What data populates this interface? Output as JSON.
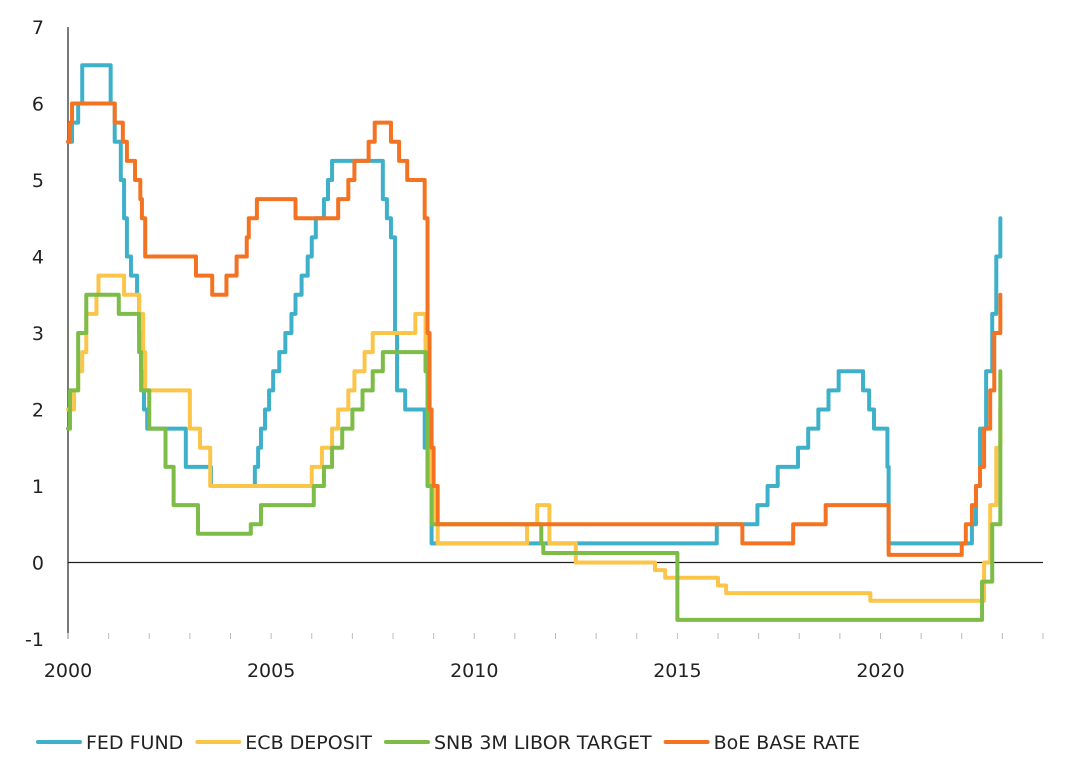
{
  "chart_data": {
    "type": "line",
    "title": "",
    "xlabel": "",
    "ylabel": "",
    "xlim": [
      2000,
      2024
    ],
    "ylim": [
      -1,
      7
    ],
    "x_ticks": [
      2000,
      2005,
      2010,
      2015,
      2020
    ],
    "y_ticks": [
      -1,
      0,
      1,
      2,
      3,
      4,
      5,
      6,
      7
    ],
    "grid": false,
    "legend_position": "bottom",
    "series": [
      {
        "name": "FED FUND",
        "color": "#3fb0c9",
        "points": [
          [
            2000.0,
            5.5
          ],
          [
            2000.1,
            5.75
          ],
          [
            2000.25,
            6.0
          ],
          [
            2000.35,
            6.5
          ],
          [
            2001.0,
            6.5
          ],
          [
            2001.05,
            6.0
          ],
          [
            2001.15,
            5.5
          ],
          [
            2001.3,
            5.0
          ],
          [
            2001.38,
            4.5
          ],
          [
            2001.45,
            4.0
          ],
          [
            2001.55,
            3.75
          ],
          [
            2001.7,
            3.5
          ],
          [
            2001.75,
            3.0
          ],
          [
            2001.8,
            2.5
          ],
          [
            2001.87,
            2.0
          ],
          [
            2001.95,
            1.75
          ],
          [
            2002.85,
            1.75
          ],
          [
            2002.9,
            1.25
          ],
          [
            2003.5,
            1.25
          ],
          [
            2003.52,
            1.0
          ],
          [
            2004.5,
            1.0
          ],
          [
            2004.6,
            1.25
          ],
          [
            2004.68,
            1.5
          ],
          [
            2004.75,
            1.75
          ],
          [
            2004.85,
            2.0
          ],
          [
            2004.95,
            2.25
          ],
          [
            2005.05,
            2.5
          ],
          [
            2005.2,
            2.75
          ],
          [
            2005.35,
            3.0
          ],
          [
            2005.5,
            3.25
          ],
          [
            2005.6,
            3.5
          ],
          [
            2005.75,
            3.75
          ],
          [
            2005.9,
            4.0
          ],
          [
            2006.0,
            4.25
          ],
          [
            2006.1,
            4.5
          ],
          [
            2006.3,
            4.75
          ],
          [
            2006.4,
            5.0
          ],
          [
            2006.5,
            5.25
          ],
          [
            2007.7,
            5.25
          ],
          [
            2007.75,
            4.75
          ],
          [
            2007.85,
            4.5
          ],
          [
            2007.95,
            4.25
          ],
          [
            2008.05,
            3.0
          ],
          [
            2008.1,
            2.25
          ],
          [
            2008.3,
            2.0
          ],
          [
            2008.75,
            2.0
          ],
          [
            2008.78,
            1.5
          ],
          [
            2008.85,
            1.0
          ],
          [
            2008.95,
            0.25
          ],
          [
            2015.95,
            0.25
          ],
          [
            2015.97,
            0.5
          ],
          [
            2016.95,
            0.5
          ],
          [
            2016.97,
            0.75
          ],
          [
            2017.2,
            0.75
          ],
          [
            2017.22,
            1.0
          ],
          [
            2017.45,
            1.0
          ],
          [
            2017.47,
            1.25
          ],
          [
            2017.95,
            1.25
          ],
          [
            2017.97,
            1.5
          ],
          [
            2018.2,
            1.5
          ],
          [
            2018.22,
            1.75
          ],
          [
            2018.45,
            1.75
          ],
          [
            2018.47,
            2.0
          ],
          [
            2018.7,
            2.0
          ],
          [
            2018.72,
            2.25
          ],
          [
            2018.95,
            2.25
          ],
          [
            2018.97,
            2.5
          ],
          [
            2019.55,
            2.5
          ],
          [
            2019.57,
            2.25
          ],
          [
            2019.7,
            2.25
          ],
          [
            2019.72,
            2.0
          ],
          [
            2019.82,
            2.0
          ],
          [
            2019.84,
            1.75
          ],
          [
            2020.15,
            1.75
          ],
          [
            2020.17,
            1.25
          ],
          [
            2020.2,
            0.25
          ],
          [
            2022.2,
            0.25
          ],
          [
            2022.25,
            0.5
          ],
          [
            2022.35,
            1.0
          ],
          [
            2022.45,
            1.75
          ],
          [
            2022.6,
            2.5
          ],
          [
            2022.75,
            3.25
          ],
          [
            2022.85,
            4.0
          ],
          [
            2022.95,
            4.5
          ]
        ]
      },
      {
        "name": "ECB DEPOSIT",
        "color": "#fbc54a",
        "points": [
          [
            2000.0,
            2.0
          ],
          [
            2000.15,
            2.25
          ],
          [
            2000.25,
            2.5
          ],
          [
            2000.35,
            2.75
          ],
          [
            2000.45,
            3.25
          ],
          [
            2000.7,
            3.5
          ],
          [
            2000.75,
            3.75
          ],
          [
            2001.35,
            3.75
          ],
          [
            2001.38,
            3.5
          ],
          [
            2001.7,
            3.5
          ],
          [
            2001.75,
            3.25
          ],
          [
            2001.85,
            2.75
          ],
          [
            2001.9,
            2.25
          ],
          [
            2002.95,
            2.25
          ],
          [
            2003.0,
            1.75
          ],
          [
            2003.2,
            1.75
          ],
          [
            2003.25,
            1.5
          ],
          [
            2003.45,
            1.5
          ],
          [
            2003.5,
            1.0
          ],
          [
            2005.95,
            1.0
          ],
          [
            2006.0,
            1.25
          ],
          [
            2006.2,
            1.25
          ],
          [
            2006.25,
            1.5
          ],
          [
            2006.45,
            1.5
          ],
          [
            2006.5,
            1.75
          ],
          [
            2006.6,
            1.75
          ],
          [
            2006.65,
            2.0
          ],
          [
            2006.85,
            2.0
          ],
          [
            2006.9,
            2.25
          ],
          [
            2007.0,
            2.25
          ],
          [
            2007.05,
            2.5
          ],
          [
            2007.25,
            2.5
          ],
          [
            2007.3,
            2.75
          ],
          [
            2007.45,
            2.75
          ],
          [
            2007.5,
            3.0
          ],
          [
            2008.5,
            3.0
          ],
          [
            2008.55,
            3.25
          ],
          [
            2008.75,
            3.25
          ],
          [
            2008.8,
            2.75
          ],
          [
            2008.85,
            2.25
          ],
          [
            2008.9,
            1.0
          ],
          [
            2009.0,
            0.5
          ],
          [
            2009.1,
            0.25
          ],
          [
            2011.25,
            0.25
          ],
          [
            2011.3,
            0.5
          ],
          [
            2011.5,
            0.5
          ],
          [
            2011.55,
            0.75
          ],
          [
            2011.8,
            0.75
          ],
          [
            2011.85,
            0.25
          ],
          [
            2012.45,
            0.25
          ],
          [
            2012.5,
            0.0
          ],
          [
            2014.4,
            0.0
          ],
          [
            2014.45,
            -0.1
          ],
          [
            2014.65,
            -0.1
          ],
          [
            2014.7,
            -0.2
          ],
          [
            2015.95,
            -0.2
          ],
          [
            2016.0,
            -0.3
          ],
          [
            2016.15,
            -0.3
          ],
          [
            2016.2,
            -0.4
          ],
          [
            2019.7,
            -0.4
          ],
          [
            2019.75,
            -0.5
          ],
          [
            2022.5,
            -0.5
          ],
          [
            2022.55,
            0.0
          ],
          [
            2022.7,
            0.75
          ],
          [
            2022.85,
            1.5
          ],
          [
            2022.95,
            2.0
          ]
        ]
      },
      {
        "name": "SNB 3M LIBOR TARGET",
        "color": "#7cbc47",
        "points": [
          [
            2000.0,
            1.75
          ],
          [
            2000.05,
            2.25
          ],
          [
            2000.2,
            2.25
          ],
          [
            2000.25,
            3.0
          ],
          [
            2000.4,
            3.0
          ],
          [
            2000.45,
            3.5
          ],
          [
            2001.2,
            3.5
          ],
          [
            2001.25,
            3.25
          ],
          [
            2001.7,
            3.25
          ],
          [
            2001.75,
            2.75
          ],
          [
            2001.8,
            2.25
          ],
          [
            2001.95,
            2.25
          ],
          [
            2002.0,
            1.75
          ],
          [
            2002.35,
            1.75
          ],
          [
            2002.4,
            1.25
          ],
          [
            2002.55,
            1.25
          ],
          [
            2002.6,
            0.75
          ],
          [
            2003.15,
            0.75
          ],
          [
            2003.2,
            0.375
          ],
          [
            2004.45,
            0.375
          ],
          [
            2004.5,
            0.5
          ],
          [
            2004.7,
            0.5
          ],
          [
            2004.75,
            0.75
          ],
          [
            2006.0,
            0.75
          ],
          [
            2006.05,
            1.0
          ],
          [
            2006.25,
            1.0
          ],
          [
            2006.3,
            1.25
          ],
          [
            2006.45,
            1.25
          ],
          [
            2006.5,
            1.5
          ],
          [
            2006.7,
            1.5
          ],
          [
            2006.75,
            1.75
          ],
          [
            2006.95,
            1.75
          ],
          [
            2007.0,
            2.0
          ],
          [
            2007.2,
            2.0
          ],
          [
            2007.25,
            2.25
          ],
          [
            2007.45,
            2.25
          ],
          [
            2007.5,
            2.5
          ],
          [
            2007.7,
            2.5
          ],
          [
            2007.75,
            2.75
          ],
          [
            2008.75,
            2.75
          ],
          [
            2008.8,
            2.5
          ],
          [
            2008.85,
            1.0
          ],
          [
            2008.95,
            0.5
          ],
          [
            2011.6,
            0.5
          ],
          [
            2011.65,
            0.25
          ],
          [
            2011.7,
            0.125
          ],
          [
            2014.95,
            0.125
          ],
          [
            2015.0,
            -0.75
          ],
          [
            2022.45,
            -0.75
          ],
          [
            2022.5,
            -0.25
          ],
          [
            2022.7,
            -0.25
          ],
          [
            2022.75,
            0.5
          ],
          [
            2022.9,
            0.5
          ],
          [
            2022.95,
            2.5
          ]
        ]
      },
      {
        "name": "BoE BASE RATE",
        "color": "#f47322",
        "points": [
          [
            2000.0,
            5.5
          ],
          [
            2000.05,
            5.75
          ],
          [
            2000.1,
            6.0
          ],
          [
            2001.1,
            6.0
          ],
          [
            2001.15,
            5.75
          ],
          [
            2001.3,
            5.75
          ],
          [
            2001.35,
            5.5
          ],
          [
            2001.4,
            5.5
          ],
          [
            2001.45,
            5.25
          ],
          [
            2001.6,
            5.25
          ],
          [
            2001.65,
            5.0
          ],
          [
            2001.75,
            5.0
          ],
          [
            2001.78,
            4.75
          ],
          [
            2001.82,
            4.5
          ],
          [
            2001.9,
            4.0
          ],
          [
            2003.1,
            4.0
          ],
          [
            2003.15,
            3.75
          ],
          [
            2003.5,
            3.75
          ],
          [
            2003.55,
            3.5
          ],
          [
            2003.85,
            3.5
          ],
          [
            2003.9,
            3.75
          ],
          [
            2004.1,
            3.75
          ],
          [
            2004.15,
            4.0
          ],
          [
            2004.35,
            4.0
          ],
          [
            2004.4,
            4.25
          ],
          [
            2004.45,
            4.5
          ],
          [
            2004.6,
            4.5
          ],
          [
            2004.65,
            4.75
          ],
          [
            2005.55,
            4.75
          ],
          [
            2005.6,
            4.5
          ],
          [
            2006.6,
            4.5
          ],
          [
            2006.65,
            4.75
          ],
          [
            2006.85,
            4.75
          ],
          [
            2006.9,
            5.0
          ],
          [
            2007.0,
            5.0
          ],
          [
            2007.05,
            5.25
          ],
          [
            2007.35,
            5.25
          ],
          [
            2007.4,
            5.5
          ],
          [
            2007.5,
            5.5
          ],
          [
            2007.55,
            5.75
          ],
          [
            2007.9,
            5.75
          ],
          [
            2007.95,
            5.5
          ],
          [
            2008.1,
            5.5
          ],
          [
            2008.15,
            5.25
          ],
          [
            2008.3,
            5.25
          ],
          [
            2008.35,
            5.0
          ],
          [
            2008.75,
            5.0
          ],
          [
            2008.78,
            4.5
          ],
          [
            2008.85,
            3.0
          ],
          [
            2008.9,
            2.0
          ],
          [
            2008.95,
            1.5
          ],
          [
            2009.0,
            1.0
          ],
          [
            2009.1,
            0.5
          ],
          [
            2016.55,
            0.5
          ],
          [
            2016.6,
            0.25
          ],
          [
            2017.8,
            0.25
          ],
          [
            2017.85,
            0.5
          ],
          [
            2018.6,
            0.5
          ],
          [
            2018.65,
            0.75
          ],
          [
            2020.15,
            0.75
          ],
          [
            2020.2,
            0.1
          ],
          [
            2021.95,
            0.1
          ],
          [
            2022.0,
            0.25
          ],
          [
            2022.1,
            0.5
          ],
          [
            2022.25,
            0.75
          ],
          [
            2022.35,
            1.0
          ],
          [
            2022.45,
            1.25
          ],
          [
            2022.55,
            1.75
          ],
          [
            2022.7,
            2.25
          ],
          [
            2022.8,
            3.0
          ],
          [
            2022.95,
            3.5
          ]
        ]
      }
    ]
  }
}
